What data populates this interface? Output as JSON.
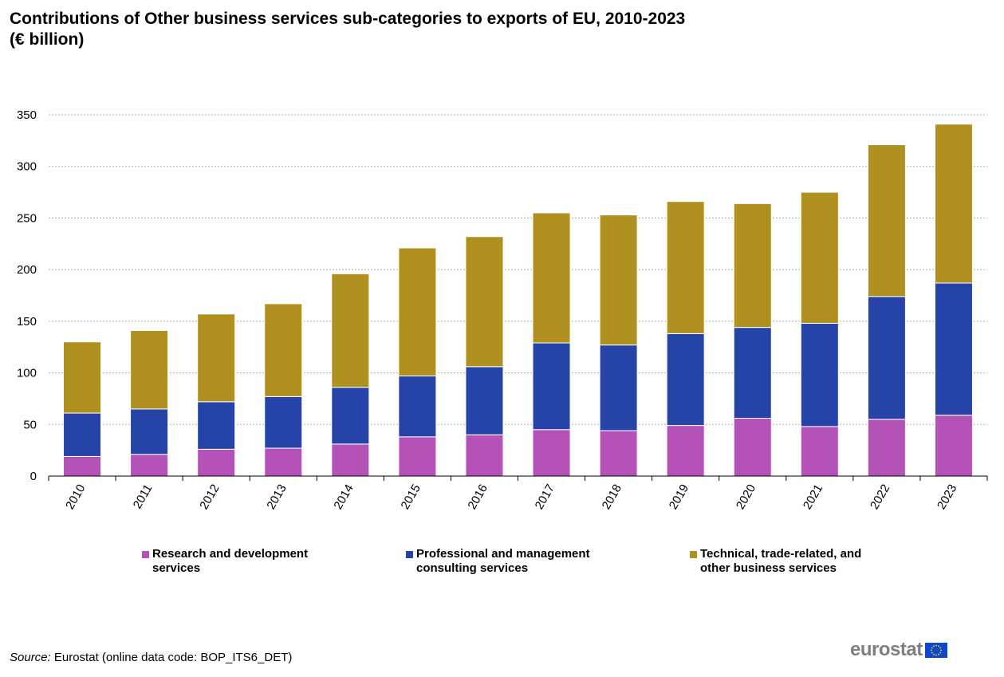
{
  "title": {
    "line1": "Contributions of Other business services sub-categories to exports of EU, 2010-2023",
    "line2": "(€ billion)"
  },
  "chart_data": {
    "type": "bar",
    "stacked": true,
    "categories": [
      "2010",
      "2011",
      "2012",
      "2013",
      "2014",
      "2015",
      "2016",
      "2017",
      "2018",
      "2019",
      "2020",
      "2021",
      "2022",
      "2023"
    ],
    "series": [
      {
        "name": "Research and development services",
        "color": "#b452b8",
        "values": [
          19,
          21,
          26,
          27,
          31,
          38,
          40,
          45,
          44,
          49,
          56,
          48,
          55,
          59
        ]
      },
      {
        "name": "Professional and management consulting services",
        "color": "#2644a8",
        "values": [
          42,
          44,
          46,
          50,
          55,
          59,
          66,
          84,
          83,
          89,
          88,
          100,
          119,
          128
        ]
      },
      {
        "name": "Technical, trade-related, and other business services",
        "color": "#b0911f",
        "values": [
          69,
          76,
          85,
          90,
          110,
          124,
          126,
          126,
          126,
          128,
          120,
          127,
          147,
          154
        ]
      }
    ],
    "ylim": [
      0,
      350
    ],
    "yticks": [
      "0",
      "50",
      "100",
      "150",
      "200",
      "250",
      "300",
      "350"
    ],
    "grid": true,
    "legend_position": "bottom"
  },
  "legend": {
    "items": [
      {
        "line1": "Research and development",
        "line2": "services",
        "color": "#b452b8"
      },
      {
        "line1": "Professional and management",
        "line2": "consulting services",
        "color": "#2644a8"
      },
      {
        "line1": "Technical, trade-related, and",
        "line2": "other business services",
        "color": "#b0911f"
      }
    ]
  },
  "source": {
    "label": "Source:",
    "text": " Eurostat (online data code: BOP_ITS6_DET)"
  },
  "logo": {
    "text": "eurostat",
    "flag_color": "#0e47cb",
    "star_color": "#ffdd00"
  }
}
